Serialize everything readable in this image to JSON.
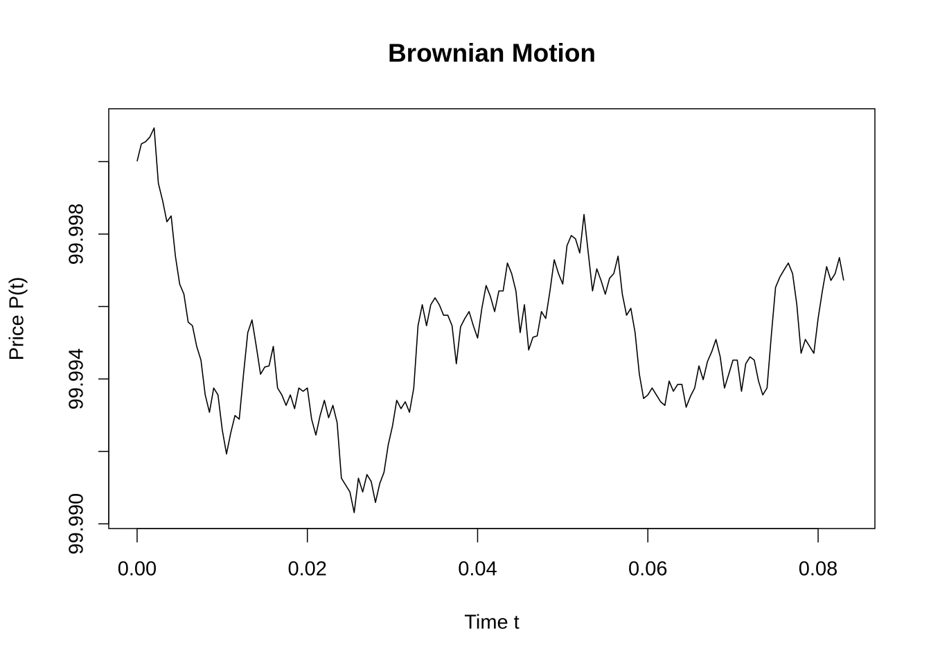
{
  "chart_data": {
    "type": "line",
    "title": "Brownian Motion",
    "x_label": "Time t",
    "y_label": "Price P(t)",
    "color": "#000000",
    "x": [
      0,
      0.0005,
      0.001,
      0.0015,
      0.002,
      0.0025,
      0.003,
      0.0035,
      0.004,
      0.0045,
      0.005,
      0.0055,
      0.006,
      0.0065,
      0.007,
      0.0075,
      0.008,
      0.0085,
      0.009,
      0.0095,
      0.01,
      0.0105,
      0.011,
      0.0115,
      0.012,
      0.0125,
      0.013,
      0.0135,
      0.014,
      0.0145,
      0.015,
      0.0155,
      0.016,
      0.0165,
      0.017,
      0.0175,
      0.018,
      0.0185,
      0.019,
      0.0195,
      0.02,
      0.0205,
      0.021,
      0.0215,
      0.022,
      0.0225,
      0.023,
      0.0235,
      0.024,
      0.0245,
      0.025,
      0.0255,
      0.026,
      0.0265,
      0.027,
      0.0275,
      0.028,
      0.0285,
      0.029,
      0.0295,
      0.03,
      0.0305,
      0.031,
      0.0315,
      0.032,
      0.0325,
      0.033,
      0.0335,
      0.034,
      0.0345,
      0.035,
      0.0355,
      0.036,
      0.0365,
      0.037,
      0.0375,
      0.038,
      0.0385,
      0.039,
      0.0395,
      0.04,
      0.0405,
      0.041,
      0.0415,
      0.042,
      0.0425,
      0.043,
      0.0435,
      0.044,
      0.0445,
      0.045,
      0.0455,
      0.046,
      0.0465,
      0.047,
      0.0475,
      0.048,
      0.0485,
      0.049,
      0.0495,
      0.05,
      0.0505,
      0.051,
      0.0515,
      0.052,
      0.0525,
      0.053,
      0.0535,
      0.054,
      0.0545,
      0.055,
      0.0555,
      0.056,
      0.0565,
      0.057,
      0.0575,
      0.058,
      0.0585,
      0.059,
      0.0595,
      0.06,
      0.0605,
      0.061,
      0.0615,
      0.062,
      0.0625,
      0.063,
      0.0635,
      0.064,
      0.0645,
      0.065,
      0.0655,
      0.066,
      0.0665,
      0.067,
      0.0675,
      0.068,
      0.0685,
      0.069,
      0.0695,
      0.07,
      0.0705,
      0.071,
      0.0715,
      0.072,
      0.0725,
      0.073,
      0.0735,
      0.074,
      0.0745,
      0.075,
      0.0755,
      0.076,
      0.0765,
      0.077,
      0.0775,
      0.078,
      0.0785,
      0.079,
      0.0795,
      0.08,
      0.0805,
      0.081,
      0.0815,
      0.082,
      0.0825,
      0.083
    ],
    "values": [
      100.00001,
      100.00049,
      100.00055,
      100.00068,
      100.00093,
      99.9994,
      99.99892,
      99.99834,
      99.9985,
      99.99739,
      99.99662,
      99.99634,
      99.99557,
      99.99547,
      99.9949,
      99.99452,
      99.99356,
      99.99308,
      99.99375,
      99.99356,
      99.9926,
      99.99193,
      99.99251,
      99.99299,
      99.99289,
      99.99413,
      99.99528,
      99.99563,
      99.9949,
      99.99413,
      99.99433,
      99.99436,
      99.9949,
      99.99375,
      99.99356,
      99.99327,
      99.99356,
      99.99318,
      99.99375,
      99.99366,
      99.99375,
      99.99289,
      99.99245,
      99.99299,
      99.99341,
      99.99293,
      99.99327,
      99.99279,
      99.99126,
      99.99107,
      99.99088,
      99.99031,
      99.99126,
      99.99088,
      99.99136,
      99.99117,
      99.99059,
      99.99111,
      99.99142,
      99.99218,
      99.9927,
      99.99341,
      99.99318,
      99.99337,
      99.99308,
      99.99375,
      99.99547,
      99.99605,
      99.99547,
      99.99605,
      99.99624,
      99.99605,
      99.99576,
      99.99576,
      99.99547,
      99.99442,
      99.99544,
      99.99567,
      99.99586,
      99.99547,
      99.99513,
      99.99595,
      99.99658,
      99.99628,
      99.99586,
      99.99643,
      99.99643,
      99.9972,
      99.99691,
      99.99643,
      99.99528,
      99.99605,
      99.9948,
      99.99515,
      99.99519,
      99.99586,
      99.99567,
      99.99643,
      99.99729,
      99.99691,
      99.99662,
      99.99768,
      99.99796,
      99.99787,
      99.99748,
      99.99854,
      99.99748,
      99.99643,
      99.99704,
      99.99672,
      99.99634,
      99.99678,
      99.99691,
      99.99739,
      99.99634,
      99.99576,
      99.99595,
      99.99528,
      99.99413,
      99.99346,
      99.99356,
      99.99375,
      99.99356,
      99.99337,
      99.99327,
      99.99394,
      99.99366,
      99.99385,
      99.99385,
      99.99322,
      99.99352,
      99.99375,
      99.99436,
      99.99398,
      99.99448,
      99.99475,
      99.99509,
      99.99461,
      99.99375,
      99.99413,
      99.99452,
      99.99452,
      99.99366,
      99.99442,
      99.99461,
      99.99452,
      99.99394,
      99.99356,
      99.99375,
      99.99519,
      99.99653,
      99.99681,
      99.99701,
      99.9972,
      99.99691,
      99.99605,
      99.99471,
      99.99509,
      99.9949,
      99.99471,
      99.99567,
      99.99643,
      99.9971,
      99.99672,
      99.99691,
      99.99735,
      99.99672
    ],
    "xlim": [
      -0.00333,
      0.08667
    ],
    "ylim": [
      99.98987,
      100.00146
    ],
    "xticks": [
      {
        "value": 0,
        "label": "0.00"
      },
      {
        "value": 0.02,
        "label": "0.02"
      },
      {
        "value": 0.04,
        "label": "0.04"
      },
      {
        "value": 0.06,
        "label": "0.06"
      },
      {
        "value": 0.08,
        "label": "0.08"
      }
    ],
    "yticks": [
      {
        "value": 99.99,
        "label": "99.990"
      },
      {
        "value": 99.994,
        "label": "99.994"
      },
      {
        "value": 99.998,
        "label": "99.998"
      }
    ],
    "ytick_marks": [
      99.99,
      99.992,
      99.994,
      99.996,
      99.998,
      100
    ]
  }
}
